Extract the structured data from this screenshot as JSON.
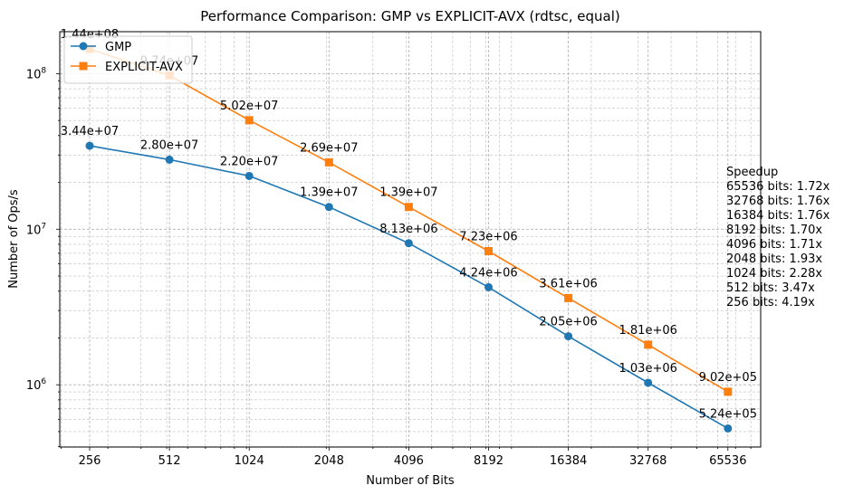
{
  "chart_data": {
    "type": "line",
    "title": "Performance Comparison: GMP vs EXPLICIT-AVX (rdtsc, equal)",
    "xlabel": "Number of Bits",
    "ylabel": "Number of Ops/s",
    "x_scale": "log2",
    "y_scale": "log10",
    "grid": true,
    "legend_position": "top-left",
    "x": [
      256,
      512,
      1024,
      2048,
      4096,
      8192,
      16384,
      32768,
      65536
    ],
    "x_tick_labels": [
      "256",
      "512",
      "1024",
      "2048",
      "4096",
      "8192",
      "16384",
      "32768",
      "65536"
    ],
    "y_tick_labels": [
      {
        "value": 1000000,
        "base": "10",
        "exp": "6"
      },
      {
        "value": 10000000,
        "base": "10",
        "exp": "7"
      },
      {
        "value": 100000000,
        "base": "10",
        "exp": "8"
      }
    ],
    "series": [
      {
        "name": "GMP",
        "color": "#1f77b4",
        "marker": "circle",
        "values": [
          34400000,
          28000000,
          22000000,
          13900000,
          8130000,
          4240000,
          2050000,
          1030000,
          524000
        ],
        "labels": [
          "3.44e+07",
          "2.80e+07",
          "2.20e+07",
          "1.39e+07",
          "8.13e+06",
          "4.24e+06",
          "2.05e+06",
          "1.03e+06",
          "5.24e+05"
        ]
      },
      {
        "name": "EXPLICIT-AVX",
        "color": "#ff7f0e",
        "marker": "square",
        "values": [
          144000000,
          97400000,
          50200000,
          26900000,
          13900000,
          7230000,
          3610000,
          1810000,
          902000
        ],
        "labels": [
          "1.44e+08",
          "9.74e+07",
          "5.02e+07",
          "2.69e+07",
          "1.39e+07",
          "7.23e+06",
          "3.61e+06",
          "1.81e+06",
          "9.02e+05"
        ]
      }
    ],
    "annotation": {
      "title": "Speedup",
      "lines": [
        "65536 bits: 1.72x",
        "32768 bits: 1.76x",
        "16384 bits: 1.76x",
        "8192 bits: 1.70x",
        "4096 bits: 1.71x",
        "2048 bits: 1.93x",
        "1024 bits: 2.28x",
        "512 bits: 3.47x",
        "256 bits: 4.19x"
      ]
    }
  }
}
